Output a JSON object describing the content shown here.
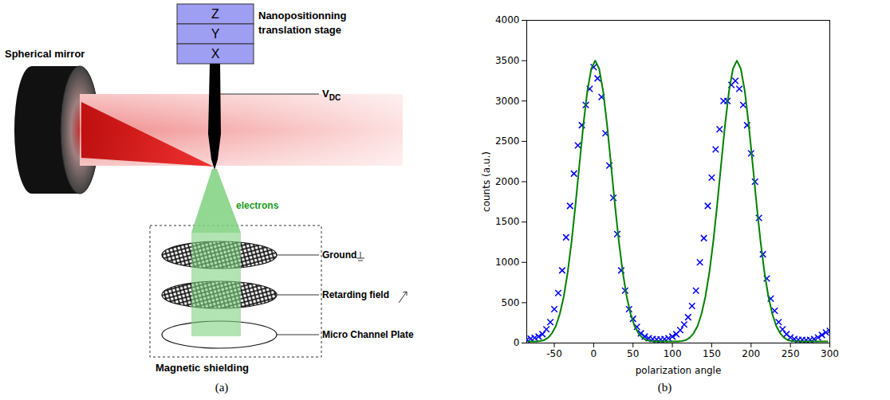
{
  "diagram": {
    "caption": "(a)",
    "stage_axes": [
      "Z",
      "Y",
      "X"
    ],
    "stage_label": [
      "Nanopositionning",
      "translation stage"
    ],
    "voltage_label": {
      "main": "V",
      "sub": "DC"
    },
    "mirror_label": "Spherical mirror",
    "beam_label": "electrons",
    "detector": [
      "Ground",
      "Retarding field",
      "Micro Channel Plate"
    ],
    "shield_label": "Magnetic shielding"
  },
  "chart_data": {
    "type": "scatter",
    "caption": "(b)",
    "x_label": "polarization angle",
    "y_label": "counts (a.u.)",
    "xlim": [
      -85,
      300
    ],
    "xticks": [
      -50,
      0,
      50,
      100,
      150,
      200,
      250,
      300
    ],
    "ylim": [
      0,
      4000
    ],
    "yticks": [
      0,
      500,
      1000,
      1500,
      2000,
      2500,
      3000,
      3500,
      4000
    ],
    "grid": false,
    "series": [
      {
        "type": "scatter",
        "marker": "x",
        "color": "#0000ff",
        "x": [
          -85,
          -80,
          -75,
          -70,
          -65,
          -60,
          -55,
          -50,
          -45,
          -40,
          -35,
          -30,
          -25,
          -20,
          -15,
          -10,
          -5,
          0,
          5,
          10,
          15,
          20,
          25,
          30,
          35,
          40,
          45,
          50,
          55,
          60,
          65,
          70,
          75,
          80,
          85,
          90,
          95,
          100,
          105,
          110,
          115,
          120,
          125,
          130,
          135,
          140,
          145,
          150,
          155,
          160,
          165,
          170,
          175,
          180,
          185,
          190,
          195,
          200,
          205,
          210,
          215,
          220,
          225,
          230,
          235,
          240,
          245,
          250,
          255,
          260,
          265,
          270,
          275,
          280,
          285,
          290,
          295,
          300
        ],
        "values": [
          40,
          55,
          65,
          80,
          110,
          170,
          260,
          420,
          620,
          900,
          1310,
          1700,
          2100,
          2450,
          2700,
          2950,
          3150,
          3420,
          3280,
          3050,
          2600,
          2200,
          1800,
          1350,
          900,
          650,
          420,
          300,
          200,
          120,
          80,
          60,
          50,
          45,
          45,
          50,
          60,
          80,
          110,
          160,
          230,
          320,
          460,
          650,
          1000,
          1300,
          1700,
          2050,
          2400,
          2650,
          3000,
          3000,
          3200,
          3250,
          3150,
          2950,
          2700,
          2350,
          2000,
          1550,
          1100,
          800,
          550,
          400,
          260,
          170,
          110,
          70,
          50,
          40,
          40,
          35,
          40,
          50,
          70,
          100,
          130,
          150
        ]
      },
      {
        "type": "line",
        "line_style": "solid",
        "color": "#008000",
        "x": [
          -83,
          -78,
          -73,
          -68,
          -63,
          -58,
          -53,
          -48,
          -43,
          -38,
          -33,
          -28,
          -23,
          -18,
          -13,
          -8,
          -3,
          2,
          7,
          12,
          17,
          22,
          27,
          32,
          37,
          42,
          47,
          52,
          57,
          62,
          67,
          72,
          77,
          82,
          87,
          92,
          97,
          102,
          107,
          112,
          117,
          122,
          127,
          132,
          137,
          142,
          147,
          152,
          157,
          162,
          167,
          172,
          177,
          182,
          187,
          192,
          197,
          202,
          207,
          212,
          217,
          222,
          227,
          232,
          237,
          242,
          247,
          252,
          257,
          262,
          267,
          272,
          277,
          282,
          287,
          292,
          297
        ],
        "values": [
          20,
          20,
          20,
          25,
          35,
          65,
          120,
          210,
          360,
          575,
          875,
          1260,
          1720,
          2220,
          2710,
          3125,
          3400,
          3500,
          3400,
          3125,
          2710,
          2220,
          1720,
          1260,
          875,
          575,
          360,
          210,
          120,
          65,
          35,
          25,
          20,
          20,
          20,
          20,
          20,
          20,
          20,
          25,
          35,
          65,
          120,
          210,
          360,
          575,
          875,
          1260,
          1720,
          2220,
          2710,
          3125,
          3400,
          3500,
          3400,
          3125,
          2710,
          2220,
          1720,
          1260,
          875,
          575,
          360,
          210,
          120,
          65,
          35,
          25,
          20,
          20,
          20,
          20,
          20,
          20,
          20,
          20,
          20
        ]
      }
    ]
  }
}
